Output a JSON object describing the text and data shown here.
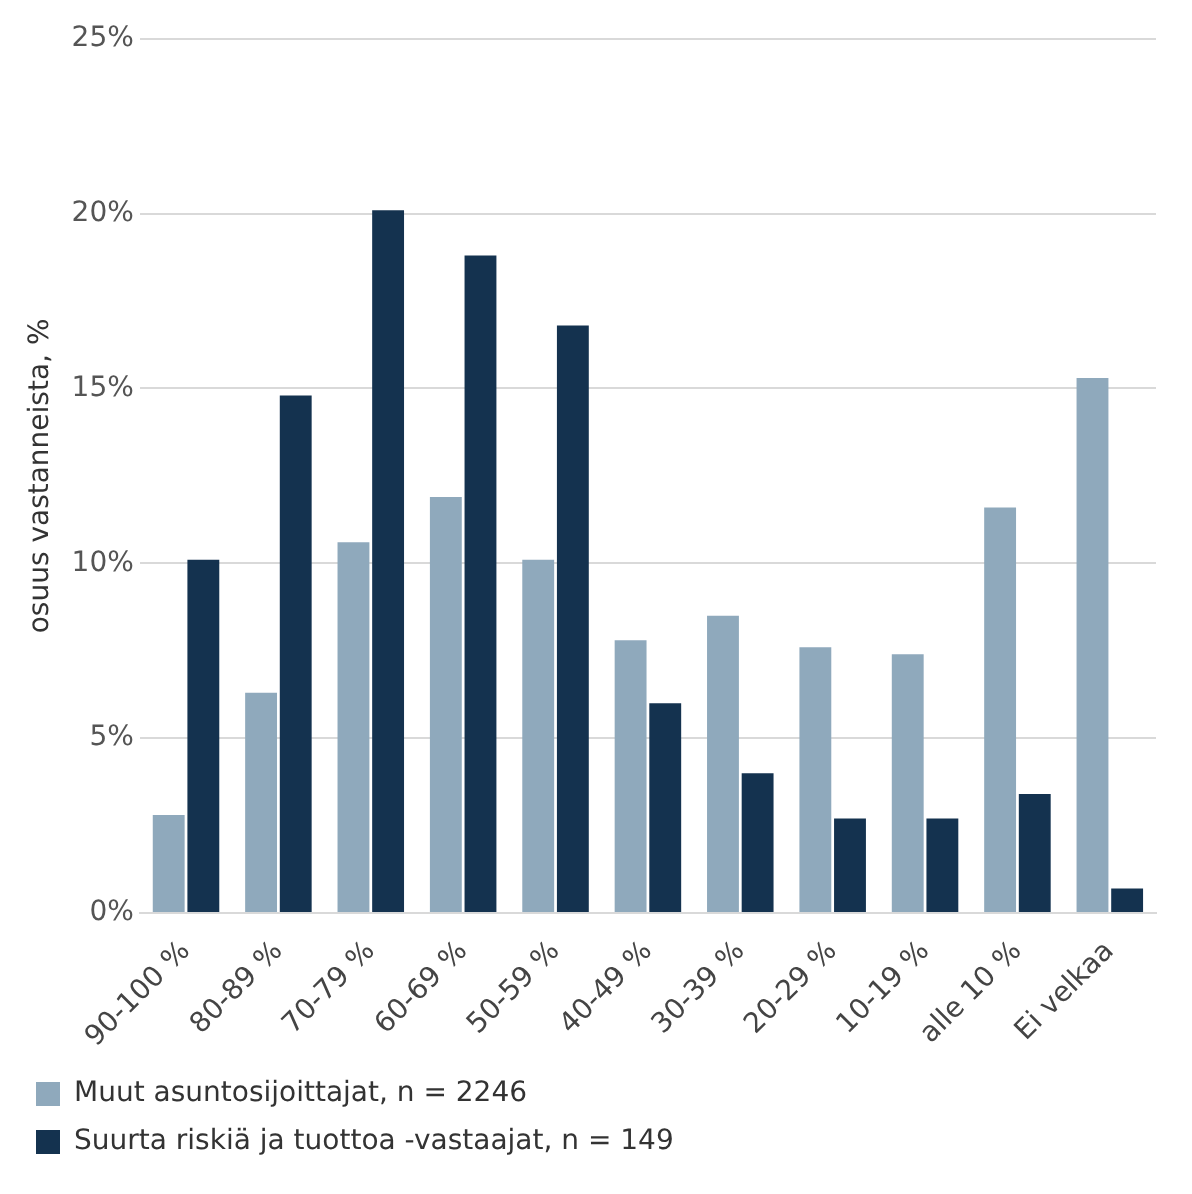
{
  "chart_data": {
    "type": "bar",
    "ylabel": "osuus vastanneista, %",
    "categories": [
      "90-100 %",
      "80-89 %",
      "70-79 %",
      "60-69 %",
      "50-59 %",
      "40-49 %",
      "30-39 %",
      "20-29 %",
      "10-19 %",
      "alle 10 %",
      "Ei velkaa"
    ],
    "series": [
      {
        "name": "Muut asuntosijoittajat, n = 2246",
        "color": "#8fa9bc",
        "values": [
          2.8,
          6.3,
          10.6,
          11.9,
          10.1,
          7.8,
          8.5,
          7.6,
          7.4,
          11.6,
          15.3
        ]
      },
      {
        "name": "Suurta riskiä ja tuottoa -vastaajat, n = 149",
        "color": "#14324f",
        "values": [
          10.1,
          14.8,
          20.1,
          18.8,
          16.8,
          6.0,
          4.0,
          2.7,
          2.7,
          3.4,
          0.7
        ]
      }
    ],
    "ylim": [
      0,
      25
    ],
    "yticks": [
      {
        "value": 0,
        "label": "0%"
      },
      {
        "value": 5,
        "label": "5%"
      },
      {
        "value": 10,
        "label": "10%"
      },
      {
        "value": 15,
        "label": "15%"
      },
      {
        "value": 20,
        "label": "20%"
      },
      {
        "value": 25,
        "label": "25%"
      }
    ],
    "grid": "y",
    "legend": "bottom"
  }
}
